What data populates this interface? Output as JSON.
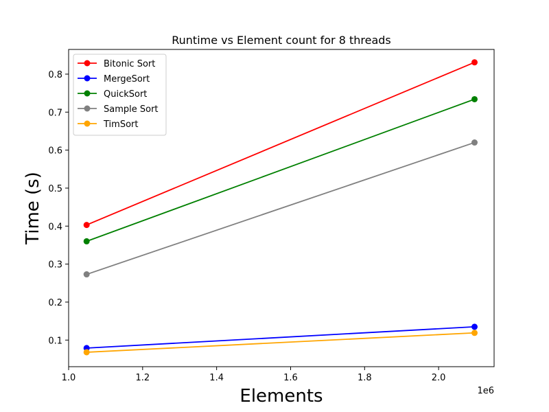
{
  "chart_data": {
    "type": "line",
    "title": "Runtime vs Element count for 8 threads",
    "xlabel": "Elements",
    "ylabel": "Time (s)",
    "x_offset_label": "1e6",
    "x": [
      1.048576,
      2.097152
    ],
    "xlim": [
      1.0,
      2.15
    ],
    "ylim": [
      0.03,
      0.865
    ],
    "xticks": [
      1.0,
      1.2,
      1.4,
      1.6,
      1.8,
      2.0
    ],
    "xtick_labels": [
      "1.0",
      "1.2",
      "1.4",
      "1.6",
      "1.8",
      "2.0"
    ],
    "yticks": [
      0.1,
      0.2,
      0.3,
      0.4,
      0.5,
      0.6,
      0.7,
      0.8
    ],
    "ytick_labels": [
      "0.1",
      "0.2",
      "0.3",
      "0.4",
      "0.5",
      "0.6",
      "0.7",
      "0.8"
    ],
    "grid": false,
    "legend_position": "upper-left",
    "series": [
      {
        "name": "Bitonic Sort",
        "color": "#ff0000",
        "values": [
          0.403,
          0.831
        ]
      },
      {
        "name": "MergeSort",
        "color": "#0000ff",
        "values": [
          0.079,
          0.135
        ]
      },
      {
        "name": "QuickSort",
        "color": "#008000",
        "values": [
          0.36,
          0.734
        ]
      },
      {
        "name": "Sample Sort",
        "color": "#808080",
        "values": [
          0.273,
          0.62
        ]
      },
      {
        "name": "TimSort",
        "color": "#ffa500",
        "values": [
          0.068,
          0.119
        ]
      }
    ]
  }
}
